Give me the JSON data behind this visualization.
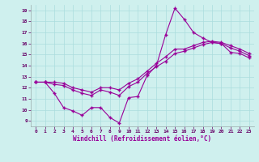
{
  "xlabel": "Windchill (Refroidissement éolien,°C)",
  "bg_color": "#cff0ee",
  "line_color": "#990099",
  "marker": "+",
  "markersize": 3.5,
  "linewidth": 0.8,
  "xlim": [
    -0.5,
    23.5
  ],
  "ylim": [
    8.5,
    19.5
  ],
  "xticks": [
    0,
    1,
    2,
    3,
    4,
    5,
    6,
    7,
    8,
    9,
    10,
    11,
    12,
    13,
    14,
    15,
    16,
    17,
    18,
    19,
    20,
    21,
    22,
    23
  ],
  "yticks": [
    9,
    10,
    11,
    12,
    13,
    14,
    15,
    16,
    17,
    18,
    19
  ],
  "grid_color": "#aadddd",
  "curve1_x": [
    0,
    1,
    2,
    3,
    4,
    5,
    6,
    7,
    8,
    9,
    10,
    11,
    12,
    13,
    14,
    15,
    16,
    17,
    18,
    19,
    20,
    21,
    22,
    23
  ],
  "curve1_y": [
    12.5,
    12.5,
    11.5,
    10.2,
    9.9,
    9.5,
    10.2,
    10.2,
    9.3,
    8.8,
    11.1,
    11.2,
    13.1,
    14.0,
    16.8,
    19.2,
    18.2,
    17.0,
    16.5,
    16.1,
    16.0,
    15.2,
    15.1,
    14.7
  ],
  "curve2_x": [
    0,
    1,
    2,
    3,
    4,
    5,
    6,
    7,
    8,
    9,
    10,
    11,
    12,
    13,
    14,
    15,
    16,
    17,
    18,
    19,
    20,
    21,
    22,
    23
  ],
  "curve2_y": [
    12.5,
    12.5,
    12.3,
    12.2,
    11.8,
    11.5,
    11.3,
    11.8,
    11.6,
    11.3,
    12.1,
    12.5,
    13.3,
    13.9,
    14.4,
    15.1,
    15.3,
    15.6,
    15.9,
    16.1,
    16.0,
    15.6,
    15.3,
    14.9
  ],
  "curve3_x": [
    0,
    1,
    2,
    3,
    4,
    5,
    6,
    7,
    8,
    9,
    10,
    11,
    12,
    13,
    14,
    15,
    16,
    17,
    18,
    19,
    20,
    21,
    22,
    23
  ],
  "curve3_y": [
    12.5,
    12.5,
    12.5,
    12.4,
    12.0,
    11.8,
    11.6,
    12.0,
    12.0,
    11.8,
    12.4,
    12.8,
    13.5,
    14.2,
    14.8,
    15.5,
    15.5,
    15.8,
    16.1,
    16.2,
    16.1,
    15.8,
    15.5,
    15.1
  ]
}
